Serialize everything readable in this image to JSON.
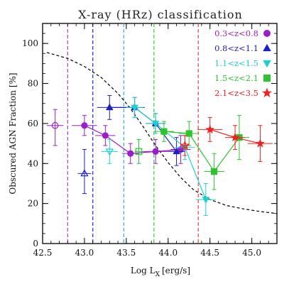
{
  "chart_data": {
    "type": "scatter",
    "title": "X-ray (HRz) classification",
    "xlabel_main": "Log L",
    "xlabel_sub": "X",
    "xlabel_unit": "[erg/s]",
    "ylabel": "Obscured AGN Fraction [%]",
    "xlim": [
      42.5,
      45.3
    ],
    "ylim": [
      0,
      110
    ],
    "x_ticks": [
      42.5,
      43.0,
      43.5,
      44.0,
      44.5,
      45.0
    ],
    "x_tick_labels": [
      "42.5",
      "43.0",
      "43.5",
      "44.0",
      "44.5",
      "45.0"
    ],
    "y_ticks": [
      0,
      20,
      40,
      60,
      80,
      100
    ],
    "y_tick_labels": [
      "0",
      "20",
      "40",
      "60",
      "80",
      "100"
    ],
    "model_curve": {
      "style": "dashed",
      "color": "#000000",
      "points": [
        [
          42.55,
          95.5
        ],
        [
          42.8,
          92.5
        ],
        [
          43.0,
          88.5
        ],
        [
          43.2,
          83
        ],
        [
          43.4,
          75
        ],
        [
          43.55,
          67.5
        ],
        [
          43.7,
          58.5
        ],
        [
          43.85,
          49
        ],
        [
          44.0,
          40.5
        ],
        [
          44.15,
          33
        ],
        [
          44.3,
          27
        ],
        [
          44.5,
          22
        ],
        [
          44.7,
          19
        ],
        [
          44.9,
          17.3
        ],
        [
          45.1,
          16
        ],
        [
          45.3,
          15
        ]
      ]
    },
    "vertical_lines": [
      {
        "x": 42.8,
        "color": "#b23ad6"
      },
      {
        "x": 43.1,
        "color": "#2323d8"
      },
      {
        "x": 43.47,
        "color": "#22bcd0"
      },
      {
        "x": 43.83,
        "color": "#3bcc3b"
      },
      {
        "x": 44.36,
        "color": "#ff3b3b"
      }
    ],
    "series": [
      {
        "name": "0.3<z<0.8",
        "color": "#9a1fc9",
        "marker": "circle",
        "points": [
          {
            "x": 42.65,
            "y": 59,
            "xerr": 0.1,
            "yerr_lo": 10,
            "yerr_hi": 8,
            "open": true
          },
          {
            "x": 43.0,
            "y": 59,
            "xerr": 0.15,
            "yerr_lo": 5,
            "yerr_hi": 5,
            "open": false
          },
          {
            "x": 43.25,
            "y": 54,
            "xerr": 0.12,
            "yerr_lo": 5,
            "yerr_hi": 5,
            "open": false
          },
          {
            "x": 43.55,
            "y": 45,
            "xerr": 0.1,
            "yerr_lo": 5,
            "yerr_hi": 5,
            "open": false
          },
          {
            "x": 43.85,
            "y": 46,
            "xerr": 0.15,
            "yerr_lo": 6,
            "yerr_hi": 6,
            "open": false
          },
          {
            "x": 44.15,
            "y": 47,
            "xerr": 0.12,
            "yerr_lo": 7,
            "yerr_hi": 7,
            "open": false
          }
        ]
      },
      {
        "name": "0.8<z<1.1",
        "color": "#1e1ec9",
        "marker": "triangle-up",
        "points": [
          {
            "x": 43.0,
            "y": 35,
            "xerr": 0.08,
            "yerr_lo": 10,
            "yerr_hi": 12,
            "open": true
          },
          {
            "x": 43.3,
            "y": 68,
            "xerr": 0.15,
            "yerr_lo": 6,
            "yerr_hi": 6,
            "open": false
          },
          {
            "x": 43.6,
            "y": 68,
            "xerr": 0.12,
            "yerr_lo": 5,
            "yerr_hi": 5,
            "open": false
          },
          {
            "x": 43.85,
            "y": 60,
            "xerr": 0.12,
            "yerr_lo": 5,
            "yerr_hi": 5,
            "open": false
          },
          {
            "x": 44.1,
            "y": 46,
            "xerr": 0.1,
            "yerr_lo": 7,
            "yerr_hi": 7,
            "open": false
          }
        ]
      },
      {
        "name": "1.1<z<1.5",
        "color": "#1fd0d0",
        "marker": "triangle-down",
        "points": [
          {
            "x": 43.3,
            "y": 46,
            "xerr": 0.1,
            "yerr_lo": 6,
            "yerr_hi": 6,
            "open": true
          },
          {
            "x": 43.6,
            "y": 68,
            "xerr": 0.1,
            "yerr_lo": 5,
            "yerr_hi": 5,
            "open": false
          },
          {
            "x": 43.85,
            "y": 60,
            "xerr": 0.12,
            "yerr_lo": 5,
            "yerr_hi": 5,
            "open": false
          },
          {
            "x": 44.2,
            "y": 48,
            "xerr": 0.12,
            "yerr_lo": 6,
            "yerr_hi": 6,
            "open": false
          },
          {
            "x": 44.45,
            "y": 22,
            "xerr": 0.12,
            "yerr_lo": 8,
            "yerr_hi": 8,
            "open": false
          }
        ]
      },
      {
        "name": "1.5<z<2.1",
        "color": "#2ec42e",
        "marker": "square",
        "points": [
          {
            "x": 43.65,
            "y": 46,
            "xerr": 0.05,
            "yerr_lo": 6,
            "yerr_hi": 6,
            "open": true
          },
          {
            "x": 43.95,
            "y": 56,
            "xerr": 0.12,
            "yerr_lo": 5,
            "yerr_hi": 5,
            "open": false
          },
          {
            "x": 44.25,
            "y": 55,
            "xerr": 0.12,
            "yerr_lo": 6,
            "yerr_hi": 6,
            "open": false
          },
          {
            "x": 44.55,
            "y": 36,
            "xerr": 0.12,
            "yerr_lo": 9,
            "yerr_hi": 9,
            "open": false
          },
          {
            "x": 44.85,
            "y": 53,
            "xerr": 0.12,
            "yerr_lo": 11,
            "yerr_hi": 11,
            "open": false
          }
        ]
      },
      {
        "name": "2.1<z<3.5",
        "color": "#ee2020",
        "marker": "star",
        "points": [
          {
            "x": 44.2,
            "y": 49,
            "xerr": 0.05,
            "yerr_lo": 5,
            "yerr_hi": 5,
            "open": true
          },
          {
            "x": 44.5,
            "y": 57,
            "xerr": 0.15,
            "yerr_lo": 6,
            "yerr_hi": 6,
            "open": false
          },
          {
            "x": 44.8,
            "y": 53,
            "xerr": 0.12,
            "yerr_lo": 6,
            "yerr_hi": 6,
            "open": false
          },
          {
            "x": 45.1,
            "y": 50,
            "xerr": 0.15,
            "yerr_lo": 9,
            "yerr_hi": 9,
            "open": false
          }
        ]
      }
    ],
    "legend": {
      "placement": "top-right",
      "entries": [
        "0.3<z<0.8",
        "0.8<z<1.1",
        "1.1<z<1.5",
        "1.5<z<2.1",
        "2.1<z<3.5"
      ]
    }
  }
}
